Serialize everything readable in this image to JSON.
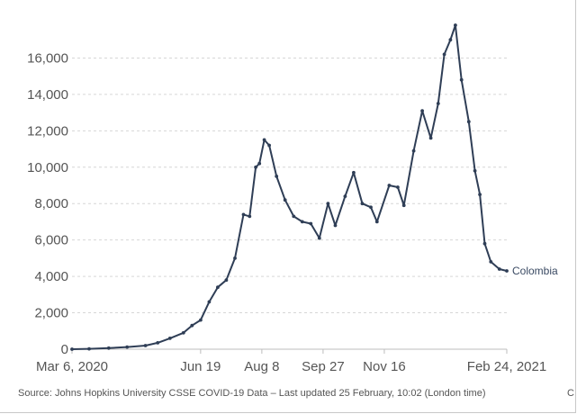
{
  "chart_data": {
    "type": "line",
    "title": "",
    "xlabel": "",
    "ylabel": "",
    "x_range": [
      "2020-03-06",
      "2021-02-24"
    ],
    "ylim": [
      0,
      18000
    ],
    "grid": true,
    "y_ticks": [
      0,
      2000,
      4000,
      6000,
      8000,
      10000,
      12000,
      14000,
      16000
    ],
    "y_tick_labels": [
      "0",
      "2,000",
      "4,000",
      "6,000",
      "8,000",
      "10,000",
      "12,000",
      "14,000",
      "16,000"
    ],
    "x_ticks": [
      "2020-03-06",
      "2020-06-19",
      "2020-08-08",
      "2020-09-27",
      "2020-11-16",
      "2021-02-24"
    ],
    "x_tick_labels": [
      "Mar 6, 2020",
      "Jun 19",
      "Aug 8",
      "Sep 27",
      "Nov 16",
      "Feb 24, 2021"
    ],
    "series": [
      {
        "name": "Colombia",
        "color": "#2f3e56",
        "points": [
          [
            "2020-03-06",
            0
          ],
          [
            "2020-03-20",
            20
          ],
          [
            "2020-04-05",
            60
          ],
          [
            "2020-04-20",
            120
          ],
          [
            "2020-05-05",
            200
          ],
          [
            "2020-05-15",
            350
          ],
          [
            "2020-05-25",
            600
          ],
          [
            "2020-06-05",
            900
          ],
          [
            "2020-06-12",
            1300
          ],
          [
            "2020-06-19",
            1600
          ],
          [
            "2020-06-26",
            2600
          ],
          [
            "2020-07-03",
            3400
          ],
          [
            "2020-07-10",
            3800
          ],
          [
            "2020-07-17",
            5000
          ],
          [
            "2020-07-24",
            7400
          ],
          [
            "2020-07-29",
            7300
          ],
          [
            "2020-08-03",
            10000
          ],
          [
            "2020-08-06",
            10200
          ],
          [
            "2020-08-10",
            11500
          ],
          [
            "2020-08-14",
            11200
          ],
          [
            "2020-08-20",
            9500
          ],
          [
            "2020-08-27",
            8200
          ],
          [
            "2020-09-03",
            7300
          ],
          [
            "2020-09-10",
            7000
          ],
          [
            "2020-09-17",
            6900
          ],
          [
            "2020-09-24",
            6100
          ],
          [
            "2020-10-01",
            8000
          ],
          [
            "2020-10-07",
            6800
          ],
          [
            "2020-10-15",
            8400
          ],
          [
            "2020-10-22",
            9700
          ],
          [
            "2020-10-29",
            8000
          ],
          [
            "2020-11-05",
            7800
          ],
          [
            "2020-11-10",
            7000
          ],
          [
            "2020-11-20",
            9000
          ],
          [
            "2020-11-27",
            8900
          ],
          [
            "2020-12-02",
            7900
          ],
          [
            "2020-12-10",
            10900
          ],
          [
            "2020-12-17",
            13100
          ],
          [
            "2020-12-24",
            11600
          ],
          [
            "2020-12-30",
            13500
          ],
          [
            "2021-01-04",
            16200
          ],
          [
            "2021-01-09",
            17000
          ],
          [
            "2021-01-13",
            17800
          ],
          [
            "2021-01-18",
            14800
          ],
          [
            "2021-01-24",
            12500
          ],
          [
            "2021-01-29",
            9800
          ],
          [
            "2021-02-02",
            8500
          ],
          [
            "2021-02-06",
            5800
          ],
          [
            "2021-02-11",
            4800
          ],
          [
            "2021-02-18",
            4400
          ],
          [
            "2021-02-24",
            4300
          ]
        ]
      }
    ]
  },
  "source": {
    "text": "Source: Johns Hopkins University CSSE COVID-19 Data – Last updated 25 February, 10:02 (London time)",
    "cut_text": "C"
  }
}
